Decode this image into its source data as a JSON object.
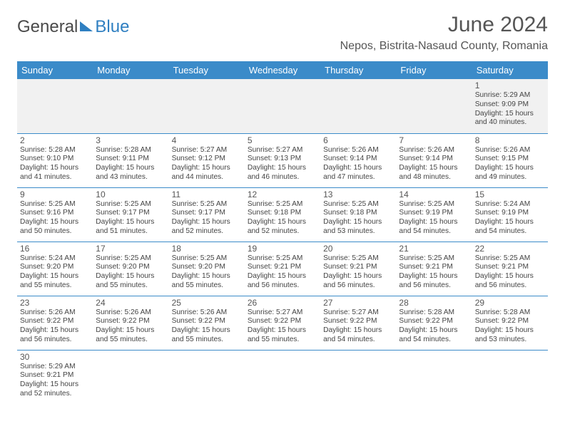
{
  "brand": {
    "first": "General",
    "second": "Blue"
  },
  "header": {
    "title": "June 2024",
    "location": "Nepos, Bistrita-Nasaud County, Romania"
  },
  "colors": {
    "header_bg": "#3b8bc9",
    "header_text": "#ffffff",
    "rule": "#3b8bc9",
    "logo_accent": "#2f7fc1",
    "muted_row": "#f1f1f1"
  },
  "dayNames": [
    "Sunday",
    "Monday",
    "Tuesday",
    "Wednesday",
    "Thursday",
    "Friday",
    "Saturday"
  ],
  "labels": {
    "sunrise": "Sunrise:",
    "sunset": "Sunset:",
    "daylight": "Daylight:"
  },
  "weeks": [
    [
      null,
      null,
      null,
      null,
      null,
      null,
      {
        "n": 1,
        "sunrise": "5:29 AM",
        "sunset": "9:09 PM",
        "dayH": 15,
        "dayM": 40
      }
    ],
    [
      {
        "n": 2,
        "sunrise": "5:28 AM",
        "sunset": "9:10 PM",
        "dayH": 15,
        "dayM": 41
      },
      {
        "n": 3,
        "sunrise": "5:28 AM",
        "sunset": "9:11 PM",
        "dayH": 15,
        "dayM": 43
      },
      {
        "n": 4,
        "sunrise": "5:27 AM",
        "sunset": "9:12 PM",
        "dayH": 15,
        "dayM": 44
      },
      {
        "n": 5,
        "sunrise": "5:27 AM",
        "sunset": "9:13 PM",
        "dayH": 15,
        "dayM": 46
      },
      {
        "n": 6,
        "sunrise": "5:26 AM",
        "sunset": "9:14 PM",
        "dayH": 15,
        "dayM": 47
      },
      {
        "n": 7,
        "sunrise": "5:26 AM",
        "sunset": "9:14 PM",
        "dayH": 15,
        "dayM": 48
      },
      {
        "n": 8,
        "sunrise": "5:26 AM",
        "sunset": "9:15 PM",
        "dayH": 15,
        "dayM": 49
      }
    ],
    [
      {
        "n": 9,
        "sunrise": "5:25 AM",
        "sunset": "9:16 PM",
        "dayH": 15,
        "dayM": 50
      },
      {
        "n": 10,
        "sunrise": "5:25 AM",
        "sunset": "9:17 PM",
        "dayH": 15,
        "dayM": 51
      },
      {
        "n": 11,
        "sunrise": "5:25 AM",
        "sunset": "9:17 PM",
        "dayH": 15,
        "dayM": 52
      },
      {
        "n": 12,
        "sunrise": "5:25 AM",
        "sunset": "9:18 PM",
        "dayH": 15,
        "dayM": 52
      },
      {
        "n": 13,
        "sunrise": "5:25 AM",
        "sunset": "9:18 PM",
        "dayH": 15,
        "dayM": 53
      },
      {
        "n": 14,
        "sunrise": "5:25 AM",
        "sunset": "9:19 PM",
        "dayH": 15,
        "dayM": 54
      },
      {
        "n": 15,
        "sunrise": "5:24 AM",
        "sunset": "9:19 PM",
        "dayH": 15,
        "dayM": 54
      }
    ],
    [
      {
        "n": 16,
        "sunrise": "5:24 AM",
        "sunset": "9:20 PM",
        "dayH": 15,
        "dayM": 55
      },
      {
        "n": 17,
        "sunrise": "5:25 AM",
        "sunset": "9:20 PM",
        "dayH": 15,
        "dayM": 55
      },
      {
        "n": 18,
        "sunrise": "5:25 AM",
        "sunset": "9:20 PM",
        "dayH": 15,
        "dayM": 55
      },
      {
        "n": 19,
        "sunrise": "5:25 AM",
        "sunset": "9:21 PM",
        "dayH": 15,
        "dayM": 56
      },
      {
        "n": 20,
        "sunrise": "5:25 AM",
        "sunset": "9:21 PM",
        "dayH": 15,
        "dayM": 56
      },
      {
        "n": 21,
        "sunrise": "5:25 AM",
        "sunset": "9:21 PM",
        "dayH": 15,
        "dayM": 56
      },
      {
        "n": 22,
        "sunrise": "5:25 AM",
        "sunset": "9:21 PM",
        "dayH": 15,
        "dayM": 56
      }
    ],
    [
      {
        "n": 23,
        "sunrise": "5:26 AM",
        "sunset": "9:22 PM",
        "dayH": 15,
        "dayM": 56
      },
      {
        "n": 24,
        "sunrise": "5:26 AM",
        "sunset": "9:22 PM",
        "dayH": 15,
        "dayM": 55
      },
      {
        "n": 25,
        "sunrise": "5:26 AM",
        "sunset": "9:22 PM",
        "dayH": 15,
        "dayM": 55
      },
      {
        "n": 26,
        "sunrise": "5:27 AM",
        "sunset": "9:22 PM",
        "dayH": 15,
        "dayM": 55
      },
      {
        "n": 27,
        "sunrise": "5:27 AM",
        "sunset": "9:22 PM",
        "dayH": 15,
        "dayM": 54
      },
      {
        "n": 28,
        "sunrise": "5:28 AM",
        "sunset": "9:22 PM",
        "dayH": 15,
        "dayM": 54
      },
      {
        "n": 29,
        "sunrise": "5:28 AM",
        "sunset": "9:22 PM",
        "dayH": 15,
        "dayM": 53
      }
    ],
    [
      {
        "n": 30,
        "sunrise": "5:29 AM",
        "sunset": "9:21 PM",
        "dayH": 15,
        "dayM": 52
      },
      null,
      null,
      null,
      null,
      null,
      null
    ]
  ]
}
